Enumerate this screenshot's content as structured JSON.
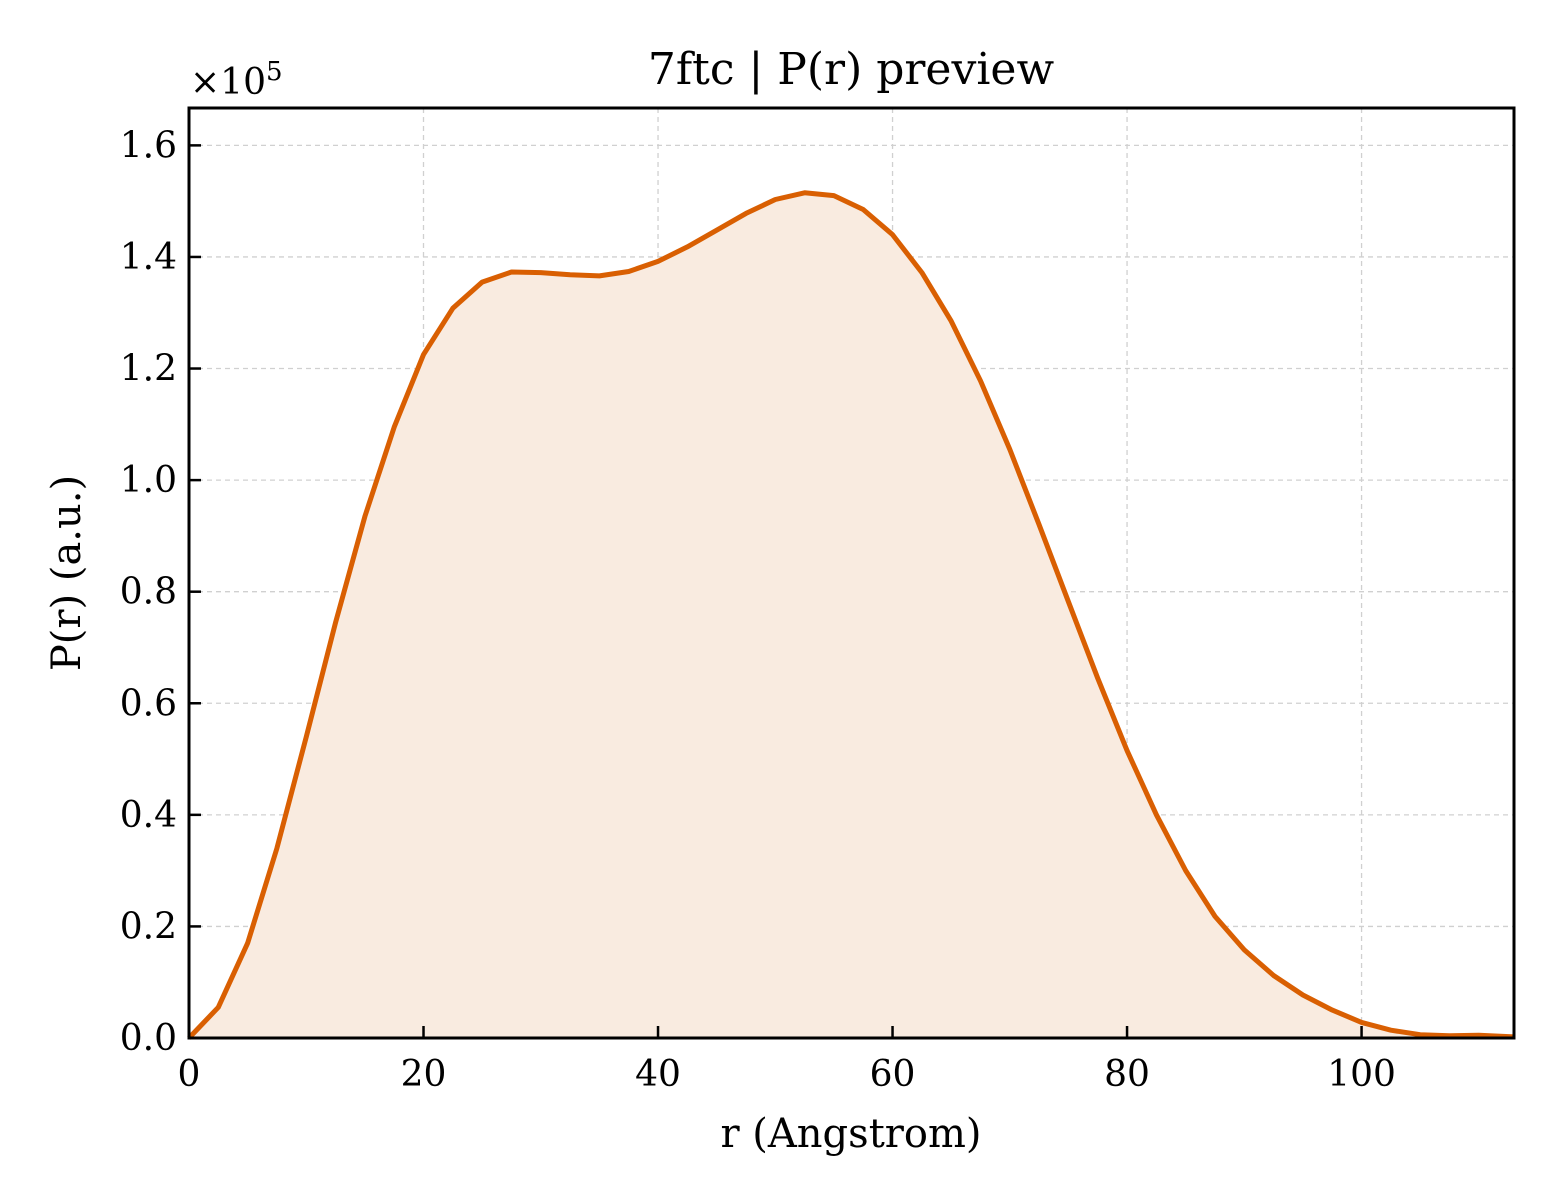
{
  "chart_data": {
    "type": "area",
    "title": "7ftc | P(r) preview",
    "xlabel": "r (Angstrom)",
    "ylabel": "P(r) (a.u.)",
    "y_multiplier_label": "×10",
    "y_multiplier_exponent": "5",
    "xlim": [
      0,
      113
    ],
    "ylim": [
      0,
      1.667
    ],
    "x_ticks": [
      0,
      20,
      40,
      60,
      80,
      100
    ],
    "x_tick_labels": [
      "0",
      "20",
      "40",
      "60",
      "80",
      "100"
    ],
    "y_ticks": [
      0,
      0.2,
      0.4,
      0.6,
      0.8,
      1.0,
      1.2,
      1.4,
      1.6
    ],
    "y_tick_labels": [
      "0.0",
      "0.2",
      "0.4",
      "0.6",
      "0.8",
      "1.0",
      "1.2",
      "1.4",
      "1.6"
    ],
    "grid": true,
    "colors": {
      "line": "#d95f02",
      "fill": "#f9ebe0"
    },
    "series": [
      {
        "x": [
          0,
          2.5,
          5,
          7.5,
          10,
          12.5,
          15,
          17.5,
          20,
          22.5,
          25,
          27.5,
          30,
          32.5,
          35,
          37.5,
          40,
          42.5,
          45,
          47.5,
          50,
          52.5,
          55,
          57.5,
          60,
          62.5,
          65,
          67.5,
          70,
          72.5,
          75,
          77.5,
          80,
          82.5,
          85,
          87.5,
          90,
          92.5,
          95,
          97.5,
          100,
          102.5,
          105,
          107.5,
          110,
          113
        ],
        "y": [
          0.0,
          0.055,
          0.17,
          0.34,
          0.54,
          0.745,
          0.935,
          1.095,
          1.225,
          1.308,
          1.355,
          1.373,
          1.372,
          1.368,
          1.366,
          1.374,
          1.392,
          1.418,
          1.448,
          1.478,
          1.503,
          1.515,
          1.51,
          1.485,
          1.44,
          1.372,
          1.285,
          1.178,
          1.055,
          0.92,
          0.782,
          0.645,
          0.515,
          0.4,
          0.3,
          0.218,
          0.158,
          0.112,
          0.077,
          0.05,
          0.028,
          0.014,
          0.006,
          0.004,
          0.005,
          0.002
        ]
      }
    ]
  }
}
